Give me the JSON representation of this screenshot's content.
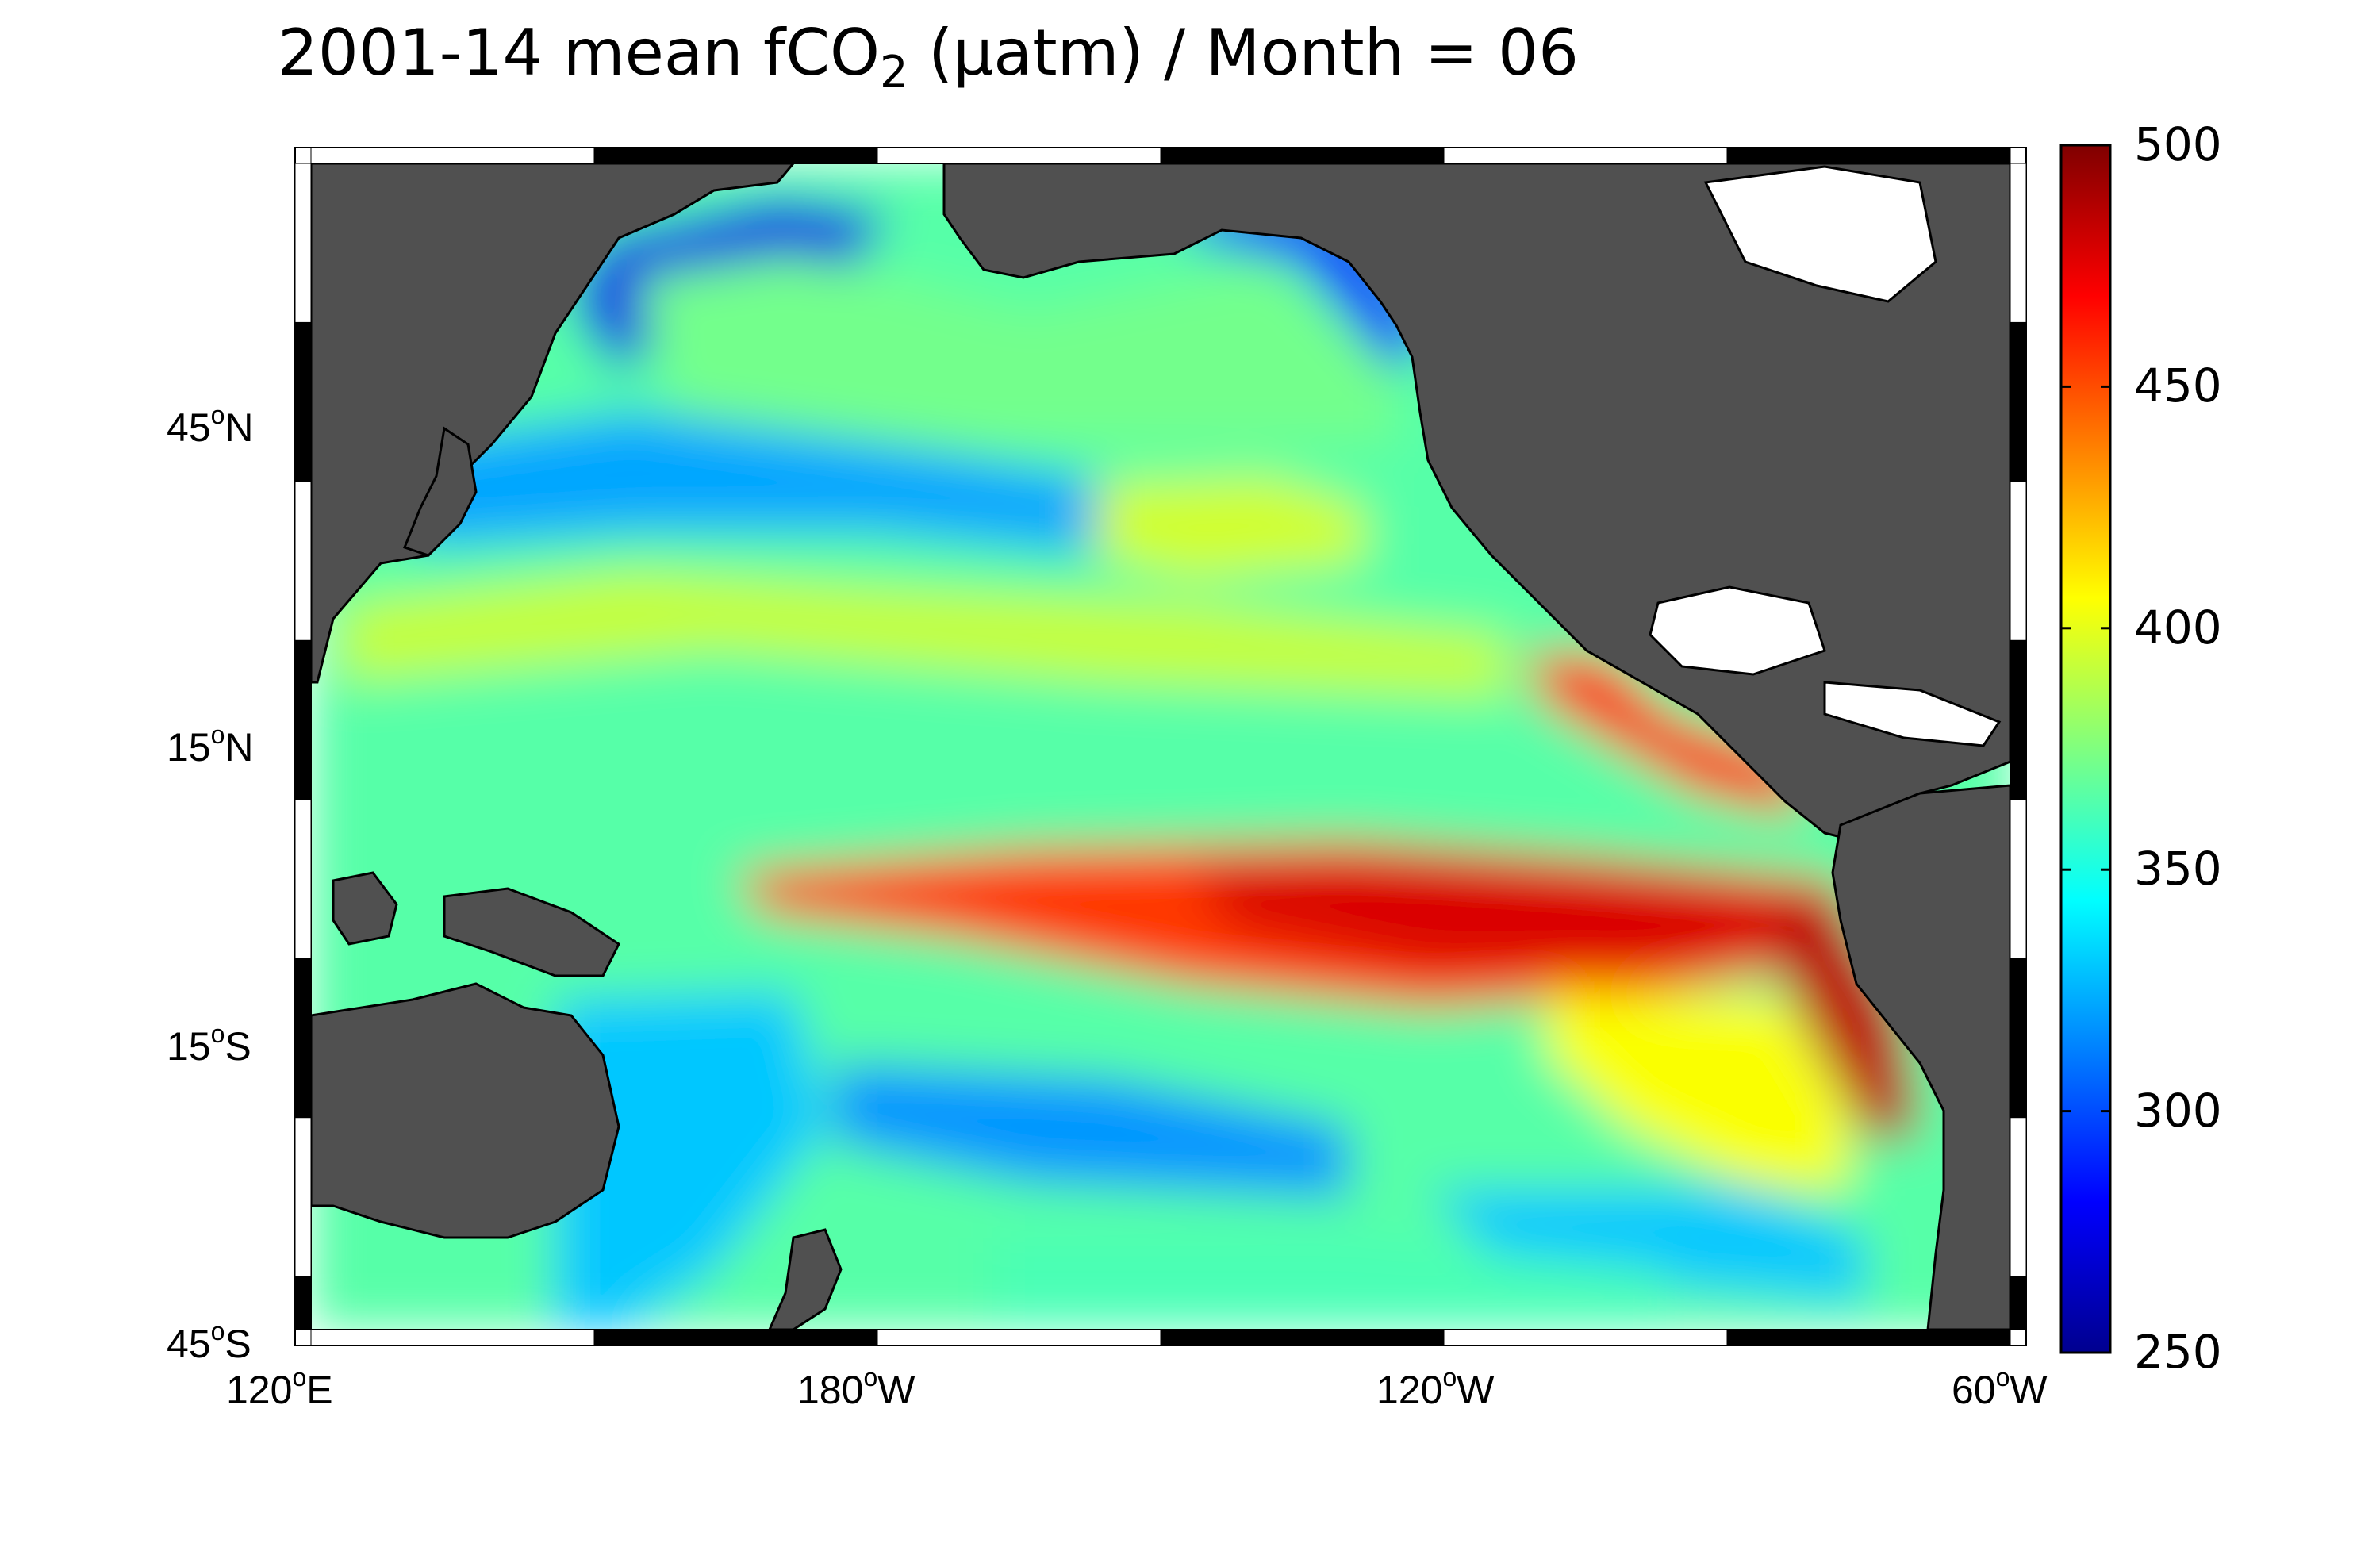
{
  "title": {
    "prefix": "2001-14 mean fCO",
    "subscript": "2",
    "suffix": " (μatm) / Month = 06"
  },
  "colors": {
    "land": "#505050",
    "missing": "#ffffff",
    "colormap": "jet"
  },
  "axes": {
    "lat_ticks": [
      {
        "num": "45",
        "hemi": "N"
      },
      {
        "num": "15",
        "hemi": "N"
      },
      {
        "num": "15",
        "hemi": "S"
      },
      {
        "num": "45",
        "hemi": "S"
      }
    ],
    "lon_ticks": [
      {
        "num": "120",
        "hemi": "E"
      },
      {
        "num": "180",
        "hemi": "W"
      },
      {
        "num": "120",
        "hemi": "W"
      },
      {
        "num": "60",
        "hemi": "W"
      }
    ]
  },
  "colorbar": {
    "min": 250,
    "max": 500,
    "labels": [
      "500",
      "450",
      "400",
      "350",
      "300",
      "250"
    ]
  },
  "chart_data": {
    "type": "heatmap",
    "variable": "fCO2",
    "units": "μatm",
    "lon_range": [
      120,
      300
    ],
    "lat_range": [
      -45,
      65
    ],
    "features": [
      {
        "region": "Equatorial Pacific cold tongue",
        "approx_value": 460
      },
      {
        "region": "Peru / Chile coast upwelling",
        "approx_value": 480
      },
      {
        "region": "Subtropical North Pacific band ~25N",
        "approx_value": 390
      },
      {
        "region": "North Pacific ~40N",
        "approx_value": 320
      },
      {
        "region": "Subpolar North Pacific",
        "approx_value": 370
      },
      {
        "region": "Bering / Kamchatka coast",
        "approx_value": 270
      },
      {
        "region": "Tropical West Pacific",
        "approx_value": 365
      },
      {
        "region": "South Pacific ~30S",
        "approx_value": 320
      },
      {
        "region": "Southeast Pacific ~25S",
        "approx_value": 400
      }
    ]
  }
}
